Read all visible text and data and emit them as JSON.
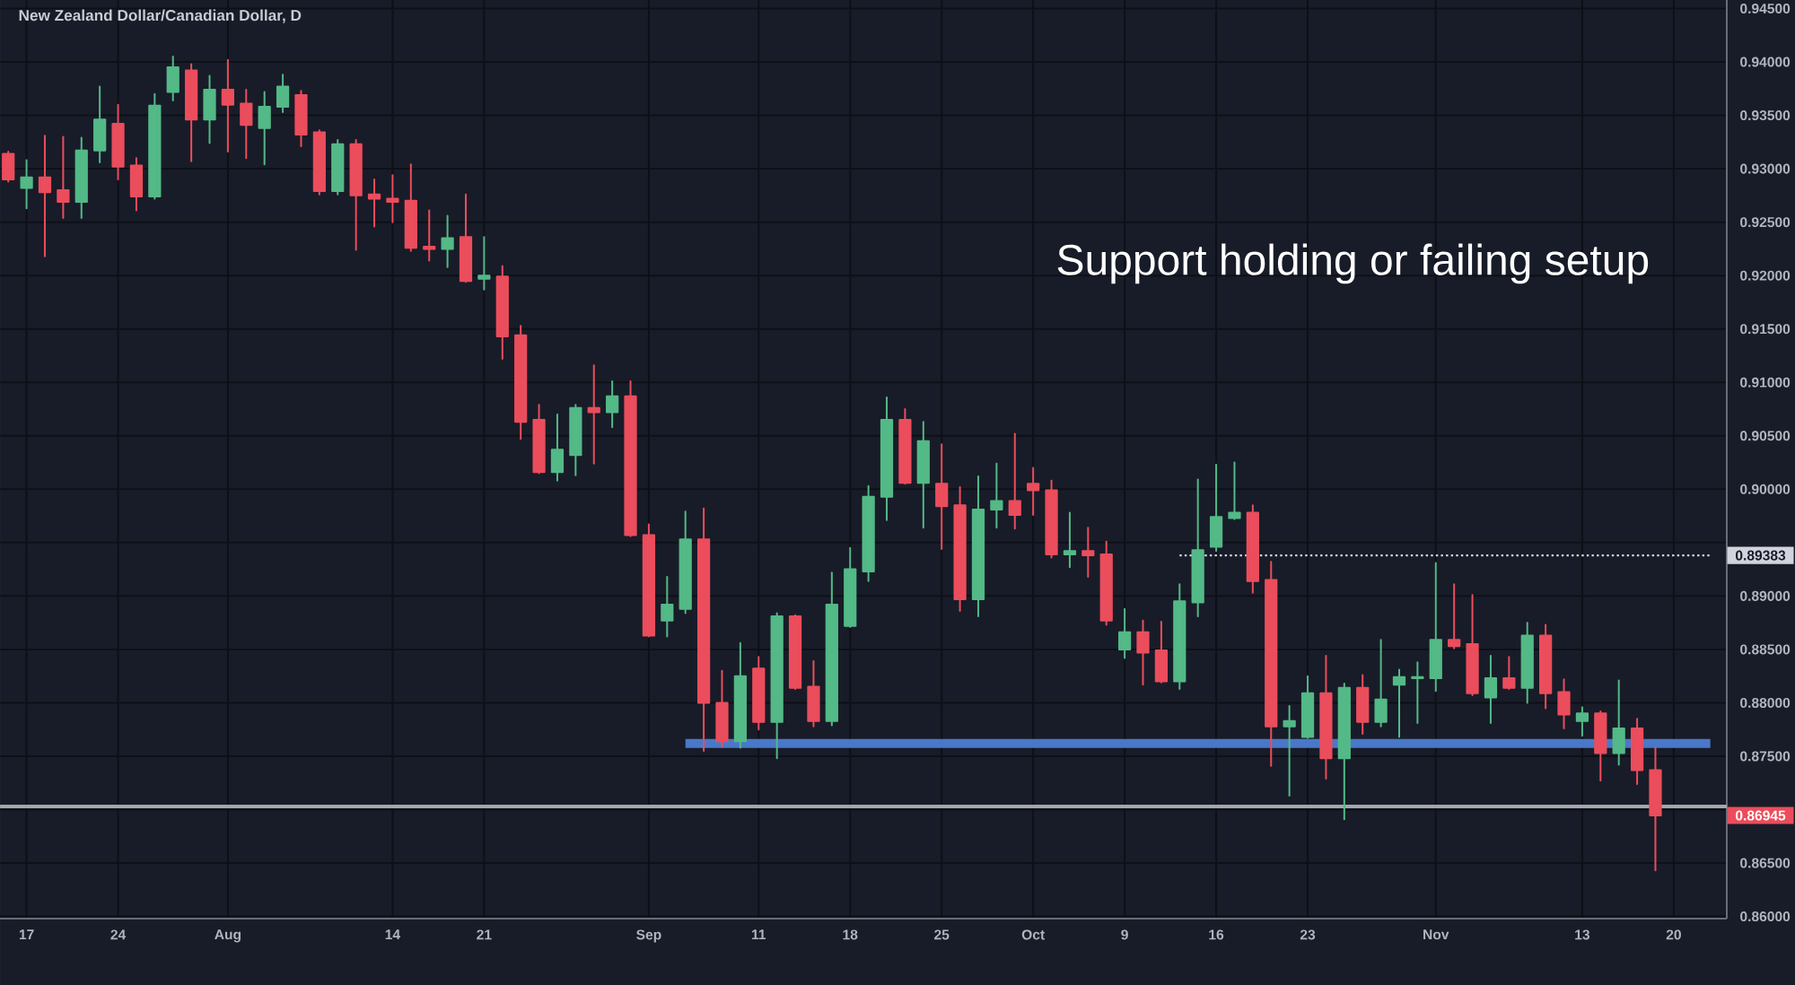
{
  "chart_data": {
    "type": "candlestick",
    "title": "New Zealand Dollar/Canadian Dollar, D",
    "categories": [
      null,
      "17",
      null,
      null,
      null,
      null,
      "24",
      null,
      null,
      null,
      null,
      null,
      "Aug",
      null,
      null,
      null,
      null,
      null,
      null,
      null,
      null,
      "14",
      null,
      null,
      null,
      null,
      "21",
      null,
      null,
      null,
      null,
      null,
      null,
      null,
      null,
      "Sep",
      null,
      null,
      null,
      null,
      null,
      "11",
      null,
      null,
      null,
      null,
      "18",
      null,
      null,
      null,
      null,
      "25",
      null,
      null,
      null,
      null,
      "Oct",
      null,
      null,
      null,
      null,
      "9",
      null,
      null,
      null,
      null,
      "16",
      null,
      null,
      null,
      null,
      "23",
      null,
      null,
      null,
      null,
      null,
      null,
      "Nov",
      null,
      null,
      null,
      null,
      null,
      null,
      null,
      "13",
      null,
      null,
      null,
      null,
      "20",
      null,
      null
    ],
    "ohlc": [
      [
        0.9314,
        0.9316,
        0.9288,
        0.929
      ],
      [
        0.9282,
        0.9308,
        0.9263,
        0.9292
      ],
      [
        0.9292,
        0.9331,
        0.9218,
        0.9278
      ],
      [
        0.928,
        0.933,
        0.9254,
        0.9269
      ],
      [
        0.9269,
        0.9329,
        0.9254,
        0.9317
      ],
      [
        0.9317,
        0.9377,
        0.9306,
        0.9346
      ],
      [
        0.9342,
        0.936,
        0.929,
        0.9302
      ],
      [
        0.9303,
        0.931,
        0.9261,
        0.9274
      ],
      [
        0.9274,
        0.937,
        0.9272,
        0.9359
      ],
      [
        0.9372,
        0.9405,
        0.9364,
        0.9395
      ],
      [
        0.9392,
        0.9398,
        0.9307,
        0.9346
      ],
      [
        0.9346,
        0.9387,
        0.9324,
        0.9374
      ],
      [
        0.9374,
        0.9402,
        0.9316,
        0.936
      ],
      [
        0.9361,
        0.9374,
        0.931,
        0.9341
      ],
      [
        0.9338,
        0.9372,
        0.9304,
        0.9358
      ],
      [
        0.9358,
        0.9388,
        0.9353,
        0.9377
      ],
      [
        0.9369,
        0.9373,
        0.9321,
        0.9332
      ],
      [
        0.9334,
        0.9336,
        0.9276,
        0.9279
      ],
      [
        0.9279,
        0.9327,
        0.9276,
        0.9323
      ],
      [
        0.9323,
        0.9327,
        0.9224,
        0.9275
      ],
      [
        0.9276,
        0.929,
        0.9246,
        0.9272
      ],
      [
        0.9272,
        0.9294,
        0.925,
        0.9269
      ],
      [
        0.927,
        0.9304,
        0.9223,
        0.9226
      ],
      [
        0.9227,
        0.9261,
        0.9214,
        0.9225
      ],
      [
        0.9225,
        0.9256,
        0.9208,
        0.9235
      ],
      [
        0.9236,
        0.9276,
        0.9194,
        0.9195
      ],
      [
        0.9197,
        0.9236,
        0.9187,
        0.92
      ],
      [
        0.9199,
        0.9209,
        0.9122,
        0.9143
      ],
      [
        0.9144,
        0.9153,
        0.9047,
        0.9063
      ],
      [
        0.9065,
        0.9079,
        0.9015,
        0.9016
      ],
      [
        0.9016,
        0.907,
        0.9008,
        0.9037
      ],
      [
        0.9032,
        0.9079,
        0.9013,
        0.9076
      ],
      [
        0.9076,
        0.9116,
        0.9024,
        0.9072
      ],
      [
        0.9072,
        0.9101,
        0.9058,
        0.9087
      ],
      [
        0.9087,
        0.9101,
        0.8956,
        0.8957
      ],
      [
        0.8957,
        0.8967,
        0.8862,
        0.8863
      ],
      [
        0.8877,
        0.8918,
        0.8862,
        0.8892
      ],
      [
        0.8888,
        0.8979,
        0.8884,
        0.8953
      ],
      [
        0.8953,
        0.8982,
        0.8755,
        0.88
      ],
      [
        0.88,
        0.883,
        0.8759,
        0.8764
      ],
      [
        0.8764,
        0.8856,
        0.8758,
        0.8825
      ],
      [
        0.8832,
        0.8843,
        0.8775,
        0.8782
      ],
      [
        0.8782,
        0.8884,
        0.8748,
        0.8881
      ],
      [
        0.8881,
        0.8882,
        0.8813,
        0.8814
      ],
      [
        0.8815,
        0.8839,
        0.8778,
        0.8783
      ],
      [
        0.8783,
        0.8922,
        0.8779,
        0.8892
      ],
      [
        0.8872,
        0.8945,
        0.8871,
        0.8925
      ],
      [
        0.8923,
        0.9003,
        0.8914,
        0.8993
      ],
      [
        0.8993,
        0.9086,
        0.8971,
        0.9065
      ],
      [
        0.9065,
        0.9075,
        0.9005,
        0.9006
      ],
      [
        0.9006,
        0.9063,
        0.8964,
        0.9045
      ],
      [
        0.9005,
        0.9042,
        0.8944,
        0.8984
      ],
      [
        0.8985,
        0.9002,
        0.8886,
        0.8897
      ],
      [
        0.8897,
        0.9012,
        0.8881,
        0.8981
      ],
      [
        0.8981,
        0.9024,
        0.8964,
        0.8989
      ],
      [
        0.8989,
        0.9052,
        0.8963,
        0.8976
      ],
      [
        0.9005,
        0.902,
        0.8976,
        0.8999
      ],
      [
        0.8999,
        0.9008,
        0.8936,
        0.8939
      ],
      [
        0.8939,
        0.8978,
        0.8927,
        0.8942
      ],
      [
        0.8942,
        0.8964,
        0.8918,
        0.8938
      ],
      [
        0.8939,
        0.8951,
        0.8873,
        0.8877
      ],
      [
        0.885,
        0.8888,
        0.8842,
        0.8866
      ],
      [
        0.8866,
        0.8877,
        0.8817,
        0.8847
      ],
      [
        0.8849,
        0.8876,
        0.8819,
        0.882
      ],
      [
        0.882,
        0.8911,
        0.8813,
        0.8895
      ],
      [
        0.8894,
        0.9009,
        0.8881,
        0.8943
      ],
      [
        0.8946,
        0.9023,
        0.8942,
        0.8974
      ],
      [
        0.8973,
        0.9025,
        0.8972,
        0.8978
      ],
      [
        0.8978,
        0.8985,
        0.8903,
        0.8914
      ],
      [
        0.8915,
        0.8932,
        0.8741,
        0.8778
      ],
      [
        0.8778,
        0.8797,
        0.8713,
        0.8783
      ],
      [
        0.8768,
        0.8825,
        0.8767,
        0.8809
      ],
      [
        0.8809,
        0.8844,
        0.8729,
        0.8748
      ],
      [
        0.8748,
        0.8818,
        0.8691,
        0.8814
      ],
      [
        0.8814,
        0.8826,
        0.8771,
        0.8782
      ],
      [
        0.8782,
        0.8859,
        0.8778,
        0.8803
      ],
      [
        0.8817,
        0.8831,
        0.8768,
        0.8824
      ],
      [
        0.8823,
        0.8838,
        0.8781,
        0.8824
      ],
      [
        0.8823,
        0.8931,
        0.8811,
        0.8859
      ],
      [
        0.8859,
        0.8911,
        0.8851,
        0.8853
      ],
      [
        0.8855,
        0.8901,
        0.8807,
        0.8809
      ],
      [
        0.8805,
        0.8844,
        0.8781,
        0.8823
      ],
      [
        0.8823,
        0.8843,
        0.8813,
        0.8814
      ],
      [
        0.8814,
        0.8875,
        0.88,
        0.8863
      ],
      [
        0.8863,
        0.8873,
        0.8795,
        0.8809
      ],
      [
        0.881,
        0.8822,
        0.8776,
        0.8789
      ],
      [
        0.8783,
        0.8796,
        0.8769,
        0.879
      ],
      [
        0.879,
        0.8792,
        0.8727,
        0.8753
      ],
      [
        0.8753,
        0.8821,
        0.8742,
        0.8776
      ],
      [
        0.8776,
        0.8785,
        0.8724,
        0.8737
      ],
      [
        0.8737,
        0.8758,
        0.8643,
        0.86945
      ],
      null,
      null,
      null
    ],
    "colors": [
      "#eb4d5c",
      "#53b987",
      "#eb4d5c",
      "#eb4d5c",
      "#53b987",
      "#53b987",
      "#eb4d5c",
      "#eb4d5c",
      "#53b987",
      "#53b987",
      "#eb4d5c",
      "#53b987",
      "#eb4d5c",
      "#eb4d5c",
      "#53b987",
      "#53b987",
      "#eb4d5c",
      "#eb4d5c",
      "#53b987",
      "#eb4d5c",
      "#eb4d5c",
      "#eb4d5c",
      "#eb4d5c",
      "#eb4d5c",
      "#53b987",
      "#eb4d5c",
      "#53b987",
      "#eb4d5c",
      "#eb4d5c",
      "#eb4d5c",
      "#53b987",
      "#53b987",
      "#eb4d5c",
      "#53b987",
      "#eb4d5c",
      "#eb4d5c",
      "#53b987",
      "#53b987",
      "#eb4d5c",
      "#eb4d5c",
      "#53b987",
      "#eb4d5c",
      "#53b987",
      "#eb4d5c",
      "#eb4d5c",
      "#53b987",
      "#53b987",
      "#53b987",
      "#53b987",
      "#eb4d5c",
      "#53b987",
      "#eb4d5c",
      "#eb4d5c",
      "#53b987",
      "#53b987",
      "#eb4d5c",
      "#eb4d5c",
      "#eb4d5c",
      "#53b987",
      "#eb4d5c",
      "#eb4d5c",
      "#53b987",
      "#eb4d5c",
      "#eb4d5c",
      "#53b987",
      "#53b987",
      "#53b987",
      "#53b987",
      "#eb4d5c",
      "#eb4d5c",
      "#53b987",
      "#53b987",
      "#eb4d5c",
      "#53b987",
      "#eb4d5c",
      "#53b987",
      "#53b987",
      "#53b987",
      "#53b987",
      "#eb4d5c",
      "#eb4d5c",
      "#53b987",
      "#eb4d5c",
      "#53b987",
      "#eb4d5c",
      "#eb4d5c",
      "#53b987",
      "#eb4d5c",
      "#53b987",
      "#eb4d5c",
      "#eb4d5c",
      null,
      null,
      null
    ],
    "value_labels": [
      null,
      null,
      null,
      null,
      null,
      null,
      null,
      null,
      null,
      null,
      null,
      null,
      null,
      null,
      null,
      null,
      null,
      null,
      null,
      null,
      null,
      null,
      null,
      null,
      null,
      null,
      null,
      null,
      null,
      null,
      null,
      null,
      null,
      null,
      null,
      null,
      null,
      null,
      null,
      null,
      null,
      null,
      null,
      null,
      null,
      null,
      null,
      null,
      null,
      null,
      null,
      null,
      null,
      null,
      null,
      null,
      null,
      null,
      null,
      null,
      null,
      null,
      null,
      null,
      null,
      null,
      null,
      null,
      null,
      null,
      null,
      null,
      null,
      null,
      null,
      null,
      null,
      null,
      null,
      null,
      null,
      null,
      null,
      null,
      null,
      null,
      null,
      null,
      null,
      null,
      "0.86945",
      null,
      null,
      null
    ],
    "series": [
      {
        "type": "line",
        "color": "#4a78c8",
        "values": [
          null,
          null,
          null,
          null,
          null,
          null,
          null,
          null,
          null,
          null,
          null,
          null,
          null,
          null,
          null,
          null,
          null,
          null,
          null,
          null,
          null,
          null,
          null,
          null,
          null,
          null,
          null,
          null,
          null,
          null,
          null,
          null,
          null,
          null,
          null,
          null,
          null,
          0.8762,
          0.8762,
          0.8762,
          0.8762,
          0.8762,
          0.8762,
          0.8762,
          0.8762,
          0.8762,
          0.8762,
          0.8762,
          0.8762,
          0.8762,
          0.8762,
          0.8762,
          0.8762,
          0.8762,
          0.8762,
          0.8762,
          0.8762,
          0.8762,
          0.8762,
          0.8762,
          0.8762,
          0.8762,
          0.8762,
          0.8762,
          0.8762,
          0.8762,
          0.8762,
          0.8762,
          0.8762,
          0.8762,
          0.8762,
          0.8762,
          0.8762,
          0.8762,
          0.8762,
          0.8762,
          0.8762,
          0.8762,
          0.8762,
          0.8762,
          0.8762,
          0.8762,
          0.8762,
          0.8762,
          0.8762,
          0.8762,
          0.8762,
          0.8762,
          0.8762,
          0.8762,
          0.8762,
          0.8762,
          0.8762,
          0.8762
        ]
      },
      {
        "type": "line",
        "name": "0.89383",
        "color": "#d1d4dc",
        "line_style": "dotted",
        "values": [
          null,
          null,
          null,
          null,
          null,
          null,
          null,
          null,
          null,
          null,
          null,
          null,
          null,
          null,
          null,
          null,
          null,
          null,
          null,
          null,
          null,
          null,
          null,
          null,
          null,
          null,
          null,
          null,
          null,
          null,
          null,
          null,
          null,
          null,
          null,
          null,
          null,
          null,
          null,
          null,
          null,
          null,
          null,
          null,
          null,
          null,
          null,
          null,
          null,
          null,
          null,
          null,
          null,
          null,
          null,
          null,
          null,
          null,
          null,
          null,
          null,
          null,
          null,
          null,
          0.8938,
          0.8938,
          0.8938,
          0.8938,
          0.8938,
          0.8938,
          0.8938,
          0.8938,
          0.8938,
          0.8938,
          0.8938,
          0.8938,
          0.8938,
          0.8938,
          0.8938,
          0.8938,
          0.8938,
          0.8938,
          0.8938,
          0.8938,
          0.8938,
          0.8938,
          0.8938,
          0.8938,
          0.8938,
          0.8938,
          0.8938,
          0.8938,
          0.8938,
          0.8938
        ]
      }
    ],
    "ref_lines": [
      {
        "axis": "y",
        "value": 0.8703,
        "color": "#a3a6af"
      }
    ],
    "annotations": [
      "Support holding or failing setup"
    ],
    "ylim": [
      0.8598,
      0.9458
    ],
    "yticks": [
      {
        "value": 0.86,
        "label": "0.86000"
      },
      {
        "value": 0.865,
        "label": "0.86500"
      },
      {
        "value": 0.87,
        "label": null
      },
      {
        "value": 0.875,
        "label": "0.87500"
      },
      {
        "value": 0.88,
        "label": "0.88000"
      },
      {
        "value": 0.885,
        "label": "0.88500"
      },
      {
        "value": 0.89,
        "label": "0.89000"
      },
      {
        "value": 0.895,
        "label": null
      },
      {
        "value": 0.9,
        "label": "0.90000"
      },
      {
        "value": 0.905,
        "label": "0.90500"
      },
      {
        "value": 0.91,
        "label": "0.91000"
      },
      {
        "value": 0.915,
        "label": "0.91500"
      },
      {
        "value": 0.92,
        "label": "0.92000"
      },
      {
        "value": 0.925,
        "label": "0.92500"
      },
      {
        "value": 0.93,
        "label": "0.93000"
      },
      {
        "value": 0.935,
        "label": "0.93500"
      },
      {
        "value": 0.94,
        "label": "0.94000"
      },
      {
        "value": 0.945,
        "label": "0.94500"
      }
    ],
    "grid": true
  }
}
